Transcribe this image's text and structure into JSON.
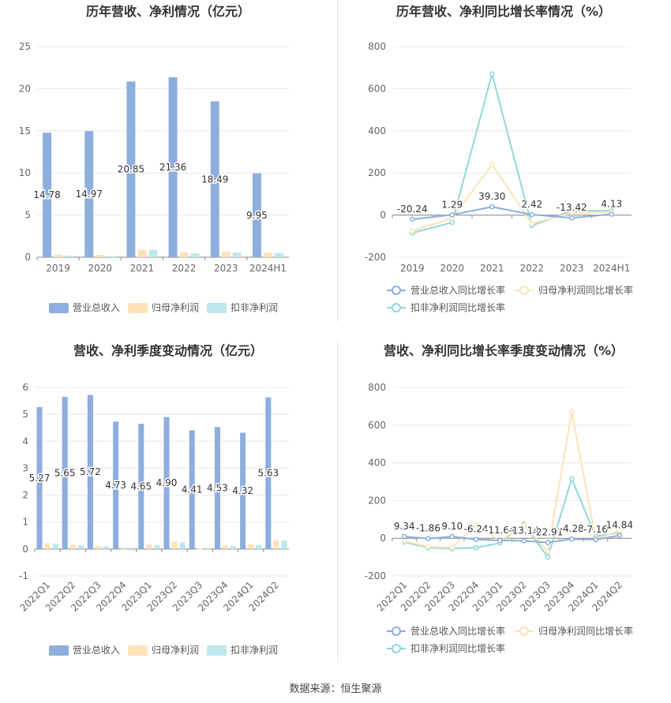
{
  "footer": "数据来源：恒生聚源",
  "colors": {
    "revenue": "#8eaedd",
    "parent_profit": "#fde3b7",
    "deducted_profit": "#bde9ec",
    "revenue_line": "#8eaedd",
    "parent_line": "#fde3b7",
    "deducted_line": "#8fd8dd",
    "grid": "#e8e8e8",
    "axis": "#999999"
  },
  "chart_data": [
    {
      "id": "annual_amount",
      "type": "bar",
      "title": "历年营收、净利情况（亿元）",
      "categories": [
        "2019",
        "2020",
        "2021",
        "2022",
        "2023",
        "2024H1"
      ],
      "ylim": [
        0,
        25
      ],
      "yticks": [
        0,
        5,
        10,
        15,
        20,
        25
      ],
      "series": [
        {
          "name": "营业总收入",
          "values": [
            14.78,
            14.97,
            20.85,
            21.36,
            18.49,
            9.95
          ],
          "labels": [
            "14.78",
            "14.97",
            "20.85",
            "21.36",
            "18.49",
            "9.95"
          ]
        },
        {
          "name": "归母净利润",
          "values": [
            0.3,
            0.28,
            0.9,
            0.55,
            0.65,
            0.55
          ]
        },
        {
          "name": "扣非净利润",
          "values": [
            0.2,
            0.12,
            0.85,
            0.45,
            0.55,
            0.5
          ]
        }
      ],
      "legend": "bottom"
    },
    {
      "id": "annual_growth",
      "type": "line",
      "title": "历年营收、净利同比增长率情况（%）",
      "categories": [
        "2019",
        "2020",
        "2021",
        "2022",
        "2023",
        "2024H1"
      ],
      "ylim": [
        -200,
        800
      ],
      "yticks": [
        -200,
        0,
        200,
        400,
        600,
        800
      ],
      "series": [
        {
          "name": "营业总收入同比增长率",
          "values": [
            -20.24,
            1.29,
            39.3,
            2.42,
            -13.42,
            4.13
          ],
          "labels": [
            "-20.24",
            "1.29",
            "39.30",
            "2.42",
            "-13.42",
            "4.13"
          ]
        },
        {
          "name": "归母净利润同比增长率",
          "values": [
            -75,
            -15,
            240,
            -40,
            10,
            15
          ]
        },
        {
          "name": "扣非净利润同比增长率",
          "values": [
            -85,
            -35,
            670,
            -50,
            20,
            20
          ]
        }
      ],
      "legend": "bottom"
    },
    {
      "id": "quarterly_amount",
      "type": "bar",
      "title": "营收、净利季度变动情况（亿元）",
      "categories": [
        "2022Q1",
        "2022Q2",
        "2022Q3",
        "2022Q4",
        "2023Q1",
        "2023Q2",
        "2023Q3",
        "2023Q4",
        "2024Q1",
        "2024Q2"
      ],
      "ylim": [
        -1,
        6
      ],
      "yticks": [
        -1,
        0,
        1,
        2,
        3,
        4,
        5,
        6
      ],
      "series": [
        {
          "name": "营业总收入",
          "values": [
            5.27,
            5.65,
            5.72,
            4.73,
            4.65,
            4.9,
            4.41,
            4.53,
            4.32,
            5.63
          ],
          "labels": [
            "5.27",
            "5.65",
            "5.72",
            "4.73",
            "4.65",
            "4.90",
            "4.41",
            "4.53",
            "4.32",
            "5.63"
          ]
        },
        {
          "name": "归母净利润",
          "values": [
            0.22,
            0.16,
            0.12,
            -0.03,
            0.17,
            0.28,
            0.01,
            0.13,
            0.17,
            0.33
          ]
        },
        {
          "name": "扣非净利润",
          "values": [
            0.2,
            0.14,
            0.1,
            -0.05,
            0.15,
            0.25,
            -0.01,
            0.11,
            0.16,
            0.32
          ]
        }
      ],
      "legend": "bottom"
    },
    {
      "id": "quarterly_growth",
      "type": "line",
      "title": "营收、净利同比增长率季度变动情况（%）",
      "categories": [
        "2022Q1",
        "2022Q2",
        "2022Q3",
        "2022Q4",
        "2023Q1",
        "2023Q2",
        "2023Q3",
        "2023Q4",
        "2024Q1",
        "2024Q2"
      ],
      "ylim": [
        -200,
        800
      ],
      "yticks": [
        -200,
        0,
        200,
        400,
        600,
        800
      ],
      "series": [
        {
          "name": "营业总收入同比增长率",
          "values": [
            9.34,
            -1.86,
            9.1,
            -6.24,
            -11.64,
            -13.14,
            -22.91,
            -4.28,
            -7.16,
            14.84
          ],
          "labels": [
            "9.34",
            "-1.86",
            "9.10",
            "-6.24",
            "-11.64",
            "-13.14",
            "-22.91",
            "-4.28",
            "-7.16",
            "14.84"
          ]
        },
        {
          "name": "归母净利润同比增长率",
          "values": [
            -15,
            -45,
            -50,
            70,
            -15,
            70,
            -70,
            670,
            -5,
            40
          ]
        },
        {
          "name": "扣非净利润同比增长率",
          "values": [
            -20,
            -50,
            -55,
            -50,
            -25,
            75,
            -100,
            315,
            10,
            30
          ]
        }
      ],
      "legend": "bottom"
    }
  ]
}
